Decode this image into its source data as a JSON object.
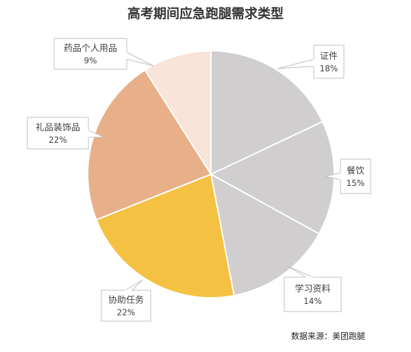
{
  "chart_data": {
    "type": "pie",
    "title": "高考期间应急跑腿需求类型",
    "source": "数据来源：美团跑腿",
    "slices": [
      {
        "name": "证件",
        "value": 18,
        "label": "18%",
        "color": "#d0cece"
      },
      {
        "name": "餐饮",
        "value": 15,
        "label": "15%",
        "color": "#d0cece"
      },
      {
        "name": "学习资料",
        "value": 14,
        "label": "14%",
        "color": "#d0cece"
      },
      {
        "name": "协助任务",
        "value": 22,
        "label": "22%",
        "color": "#f4c142"
      },
      {
        "name": "礼品装饰品",
        "value": 22,
        "label": "22%",
        "color": "#e8b088"
      },
      {
        "name": "药品个人用品",
        "value": 9,
        "label": "9%",
        "color": "#f8e4d8"
      }
    ]
  }
}
